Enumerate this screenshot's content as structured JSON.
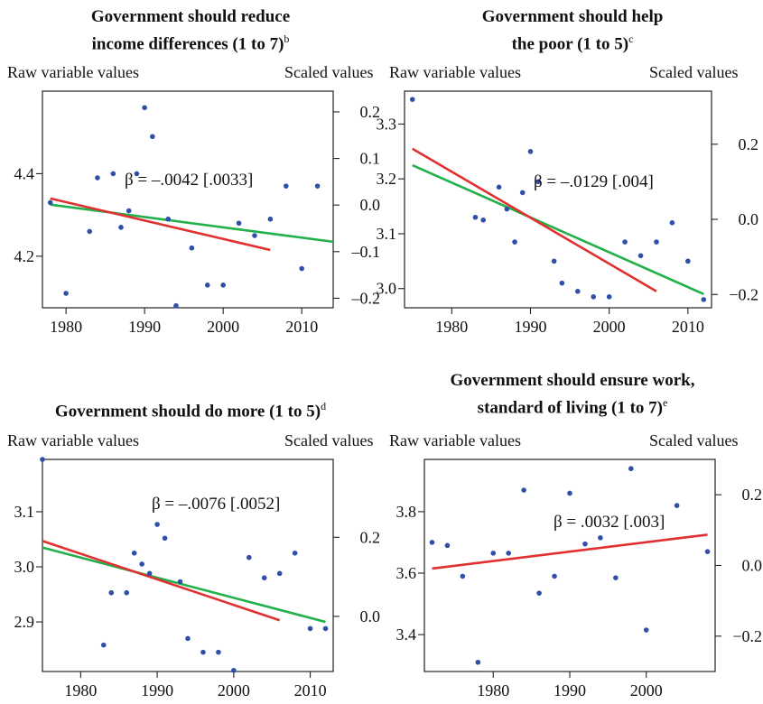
{
  "colors": {
    "points": "#2f4fa8",
    "red_line": "#e03030",
    "green_line": "#22b04a",
    "frame": "#222222"
  },
  "chart_data": [
    {
      "type": "scatter",
      "title_lines": [
        "Government should reduce",
        "income differences (1 to 7)"
      ],
      "title_sup": "b",
      "left_axis_label": "Raw variable values",
      "right_axis_label": "Scaled values",
      "annotation": "β = –.0042 [.0033]",
      "xlim": [
        1977,
        2014
      ],
      "ylim": [
        4.075,
        4.6
      ],
      "right_ylim": [
        -0.2205,
        0.2445
      ],
      "x_ticks": [
        1980,
        1990,
        2000,
        2010
      ],
      "y_ticks": [
        4.2,
        4.4
      ],
      "y_tick_labels": [
        "4.2",
        "4.4"
      ],
      "right_ticks": [
        -0.2,
        -0.1,
        0.0,
        0.1,
        0.2
      ],
      "right_tick_labels": [
        "–0.2",
        "–0.1",
        "0.0",
        "0.1",
        "0.2"
      ],
      "points": [
        [
          1978,
          4.33
        ],
        [
          1980,
          4.11
        ],
        [
          1983,
          4.26
        ],
        [
          1984,
          4.39
        ],
        [
          1986,
          4.4
        ],
        [
          1987,
          4.27
        ],
        [
          1988,
          4.31
        ],
        [
          1989,
          4.4
        ],
        [
          1990,
          4.56
        ],
        [
          1991,
          4.49
        ],
        [
          1993,
          4.29
        ],
        [
          1994,
          4.08
        ],
        [
          1996,
          4.22
        ],
        [
          1998,
          4.13
        ],
        [
          2000,
          4.13
        ],
        [
          2002,
          4.28
        ],
        [
          2004,
          4.25
        ],
        [
          2006,
          4.29
        ],
        [
          2008,
          4.37
        ],
        [
          2010,
          4.17
        ],
        [
          2012,
          4.37
        ]
      ],
      "red_line": [
        [
          1978,
          4.34
        ],
        [
          2006,
          4.215
        ]
      ],
      "green_line": [
        [
          1978,
          4.325
        ],
        [
          2014,
          4.235
        ]
      ]
    },
    {
      "type": "scatter",
      "title_lines": [
        "Government should help",
        "the poor (1 to 5)"
      ],
      "title_sup": "c",
      "left_axis_label": "Raw variable values",
      "right_axis_label": "Scaled values",
      "annotation": "β = –.0129 [.004]",
      "xlim": [
        1974,
        2013
      ],
      "ylim": [
        2.965,
        3.36
      ],
      "right_ylim": [
        -0.2353,
        0.3412
      ],
      "x_ticks": [
        1980,
        1990,
        2000,
        2010
      ],
      "y_ticks": [
        3.0,
        3.1,
        3.2,
        3.3
      ],
      "y_tick_labels": [
        "3.0",
        "3.1",
        "3.2",
        "3.3"
      ],
      "right_ticks": [
        -0.2,
        0.0,
        0.2
      ],
      "right_tick_labels": [
        "−0.2",
        "0.0",
        "0.2"
      ],
      "points": [
        [
          1975,
          3.345
        ],
        [
          1983,
          3.13
        ],
        [
          1984,
          3.125
        ],
        [
          1986,
          3.185
        ],
        [
          1987,
          3.145
        ],
        [
          1988,
          3.085
        ],
        [
          1989,
          3.175
        ],
        [
          1990,
          3.25
        ],
        [
          1991,
          3.195
        ],
        [
          1993,
          3.05
        ],
        [
          1994,
          3.01
        ],
        [
          1996,
          2.995
        ],
        [
          1998,
          2.985
        ],
        [
          2000,
          2.985
        ],
        [
          2002,
          3.085
        ],
        [
          2004,
          3.06
        ],
        [
          2006,
          3.085
        ],
        [
          2008,
          3.12
        ],
        [
          2010,
          3.05
        ],
        [
          2012,
          2.98
        ]
      ],
      "red_line": [
        [
          1975,
          3.255
        ],
        [
          2006,
          2.995
        ]
      ],
      "green_line": [
        [
          1975,
          3.225
        ],
        [
          2012,
          2.99
        ]
      ]
    },
    {
      "type": "scatter",
      "title_lines": [
        "Government should do more (1 to 5)"
      ],
      "title_sup": "d",
      "left_axis_label": "Raw variable values",
      "right_axis_label": "Scaled values",
      "annotation": "β = –.0076 [.0052]",
      "xlim": [
        1975,
        2013
      ],
      "ylim": [
        2.81,
        3.195
      ],
      "right_ylim": [
        -0.1395,
        0.3971
      ],
      "x_ticks": [
        1980,
        1990,
        2000,
        2010
      ],
      "y_ticks": [
        2.9,
        3.0,
        3.1
      ],
      "y_tick_labels": [
        "2.9",
        "3.0",
        "3.1"
      ],
      "right_ticks": [
        0.0,
        0.2
      ],
      "right_tick_labels": [
        "0.0",
        "0.2"
      ],
      "points": [
        [
          1975,
          3.195
        ],
        [
          1983,
          2.858
        ],
        [
          1984,
          2.953
        ],
        [
          1986,
          2.953
        ],
        [
          1987,
          3.025
        ],
        [
          1988,
          3.005
        ],
        [
          1989,
          2.988
        ],
        [
          1990,
          3.077
        ],
        [
          1991,
          3.052
        ],
        [
          1993,
          2.973
        ],
        [
          1994,
          2.87
        ],
        [
          1996,
          2.845
        ],
        [
          1998,
          2.845
        ],
        [
          2000,
          2.812
        ],
        [
          2002,
          3.017
        ],
        [
          2004,
          2.98
        ],
        [
          2006,
          2.988
        ],
        [
          2008,
          3.025
        ],
        [
          2010,
          2.888
        ],
        [
          2012,
          2.888
        ]
      ],
      "red_line": [
        [
          1975,
          3.047
        ],
        [
          2006,
          2.903
        ]
      ],
      "green_line": [
        [
          1975,
          3.035
        ],
        [
          2012,
          2.9
        ]
      ]
    },
    {
      "type": "scatter",
      "title_lines": [
        "Government should ensure work,",
        "standard of living (1 to 7)"
      ],
      "title_sup": "e",
      "left_axis_label": "Raw variable values",
      "right_axis_label": "Scaled values",
      "annotation": "β = .0032 [.003]",
      "xlim": [
        1971,
        2009
      ],
      "ylim": [
        3.28,
        3.97
      ],
      "right_ylim": [
        -0.3,
        0.3
      ],
      "x_ticks": [
        1980,
        1990,
        2000
      ],
      "y_ticks": [
        3.4,
        3.6,
        3.8
      ],
      "y_tick_labels": [
        "3.4",
        "3.6",
        "3.8"
      ],
      "right_ticks": [
        -0.2,
        0.0,
        0.2
      ],
      "right_tick_labels": [
        "−0.2",
        "0.0",
        "0.2"
      ],
      "points": [
        [
          1972,
          3.7
        ],
        [
          1974,
          3.69
        ],
        [
          1976,
          3.59
        ],
        [
          1978,
          3.31
        ],
        [
          1980,
          3.665
        ],
        [
          1982,
          3.665
        ],
        [
          1984,
          3.87
        ],
        [
          1986,
          3.535
        ],
        [
          1988,
          3.59
        ],
        [
          1990,
          3.86
        ],
        [
          1992,
          3.695
        ],
        [
          1994,
          3.715
        ],
        [
          1996,
          3.585
        ],
        [
          1998,
          3.94
        ],
        [
          2000,
          3.415
        ],
        [
          2004,
          3.82
        ],
        [
          2008,
          3.67
        ]
      ],
      "red_line": [
        [
          1972,
          3.615
        ],
        [
          2008,
          3.725
        ]
      ]
    }
  ]
}
